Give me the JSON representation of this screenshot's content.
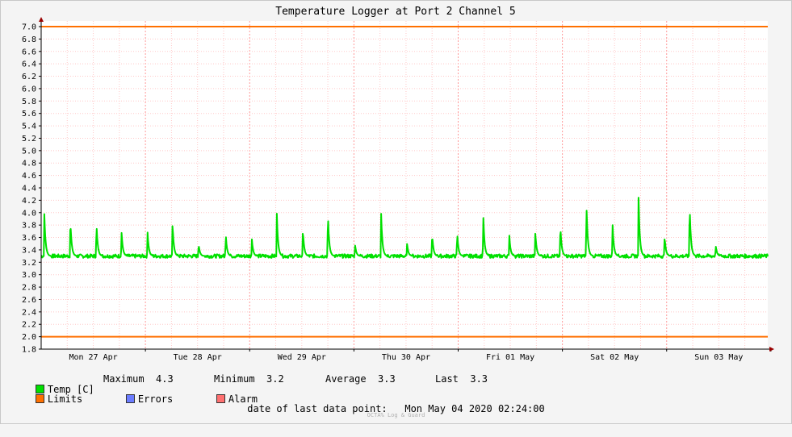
{
  "chart_data": {
    "type": "line",
    "title": "Temperature Logger at Port 2 Channel 5",
    "ylim": [
      1.8,
      7.0
    ],
    "y_ticks": [
      "7.0",
      "6.8",
      "6.6",
      "6.4",
      "6.2",
      "6.0",
      "5.8",
      "5.6",
      "5.4",
      "5.2",
      "5.0",
      "4.8",
      "4.6",
      "4.4",
      "4.2",
      "4.0",
      "3.8",
      "3.6",
      "3.4",
      "3.2",
      "3.0",
      "2.8",
      "2.6",
      "2.4",
      "2.2",
      "2.0",
      "1.8"
    ],
    "x_tick_labels": [
      "Mon 27 Apr",
      "Tue 28 Apr",
      "Wed 29 Apr",
      "Thu 30 Apr",
      "Fri 01 May",
      "Sat 02 May",
      "Sun 03 May"
    ],
    "x_days_span": 6.97,
    "grid": true,
    "limits": {
      "upper": 7.0,
      "lower": 2.0
    },
    "series": [
      {
        "name": "Temp [C]",
        "color": "#00e000",
        "baseline": 3.3,
        "spikes_day_offsets": [
          0.03,
          0.28,
          0.53,
          0.77,
          1.02,
          1.26,
          1.51,
          1.77,
          2.02,
          2.26,
          2.51,
          2.75,
          3.01,
          3.26,
          3.51,
          3.75,
          3.99,
          4.24,
          4.49,
          4.74,
          4.98,
          5.23,
          5.48,
          5.73,
          5.98,
          6.22,
          6.47
        ],
        "spikes_peak": [
          4.0,
          3.9,
          3.85,
          3.73,
          3.7,
          3.84,
          3.5,
          3.67,
          3.6,
          4.0,
          3.75,
          4.03,
          3.5,
          4.04,
          3.5,
          3.67,
          3.7,
          4.01,
          3.65,
          3.7,
          3.82,
          4.2,
          3.86,
          4.27,
          3.63,
          4.17,
          3.48
        ]
      }
    ]
  },
  "colors": {
    "temp": "#00e000",
    "limits": "#ff7000",
    "errors": "#6b7cff",
    "alarm": "#ff7070",
    "hgrid": "#ffc8c8",
    "vgrid": "#ffc8c8",
    "axis": "#000000",
    "arrow": "#990000"
  },
  "legend": {
    "temp_label": "Temp [C]",
    "maximum_label": "Maximum",
    "maximum_value": "4.3",
    "minimum_label": "Minimum",
    "minimum_value": "3.2",
    "average_label": "Average",
    "average_value": "3.3",
    "last_label": "Last",
    "last_value": "3.3",
    "limits_label": "Limits",
    "errors_label": "Errors",
    "alarm_label": "Alarm"
  },
  "footer": {
    "last_point_label": "date of last data point:",
    "last_point_value": "Mon May 04 2020 02:24:00",
    "credit": "OCTA% Log & Guard"
  }
}
